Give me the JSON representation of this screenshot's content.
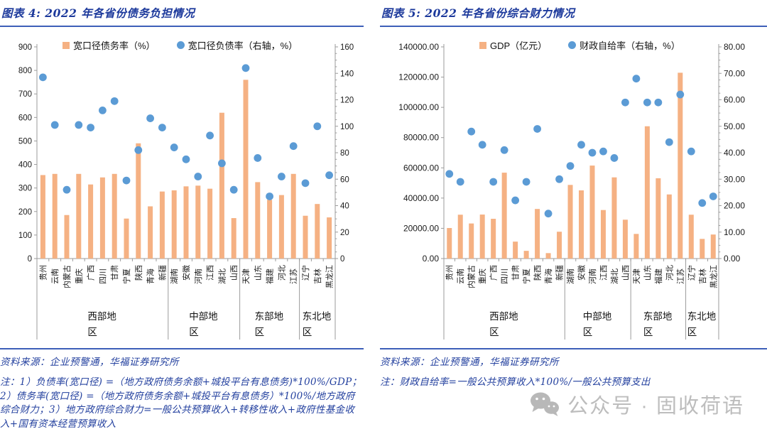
{
  "colors": {
    "accent_blue_rule": "#3d5fb8",
    "title_blue": "#1d3a9c",
    "footer_blue": "#24419f",
    "bar_orange": "#f5b183",
    "dot_blue": "#5b9bd5",
    "axis_gray": "#9b9b9b",
    "watermark_gray": "#bdbdbd"
  },
  "watermark": {
    "icon": "wechat-icon",
    "text": "公众号 · 固收荷语"
  },
  "charts": [
    {
      "title": "图表 4: 2022 年各省份债务负担情况",
      "legend": [
        {
          "swatch": "bar",
          "label": "宽口径债务率（%）"
        },
        {
          "swatch": "dot",
          "label": "宽口径负债率（右轴，%）"
        }
      ],
      "source": "资料来源：企业预警通，华福证券研究所",
      "note": "注：1）负债率(宽口径) =（地方政府债务余额+城投平台有息债务)*100%/GDP；2）债务率(宽口径) =（地方政府债务余额+城投平台有息债务）*100%/地方政府综合财力；3）地方政府综合财力=一般公共预算收入+转移性收入+政府性基金收入+国有资本经营预算收入",
      "chart_data": {
        "type": "combo-bar-scatter",
        "categories": [
          "贵州",
          "云南",
          "内蒙古",
          "重庆",
          "广西",
          "四川",
          "甘肃",
          "宁夏",
          "陕西",
          "青海",
          "新疆",
          "湖南",
          "安徽",
          "河南",
          "江西",
          "湖北",
          "山西",
          "天津",
          "山东",
          "福建",
          "河北",
          "江苏",
          "辽宁",
          "吉林",
          "黑龙江"
        ],
        "groups": [
          {
            "label": "西部地区",
            "count": 11
          },
          {
            "label": "中部地区",
            "count": 6
          },
          {
            "label": "东部地区",
            "count": 5
          },
          {
            "label": "东北地区",
            "count": 3
          }
        ],
        "series": [
          {
            "name": "宽口径债务率（%）",
            "type": "bar",
            "axis": "left",
            "color": "#f5b183",
            "values": [
              355,
              360,
              185,
              360,
              315,
              345,
              360,
              170,
              490,
              222,
              285,
              290,
              307,
              310,
              297,
              620,
              172,
              760,
              325,
              250,
              270,
              360,
              182,
              232,
              175
            ]
          },
          {
            "name": "宽口径负债率（右轴，%）",
            "type": "scatter",
            "axis": "right",
            "color": "#5b9bd5",
            "values": [
              137,
              101,
              52,
              101,
              99,
              112,
              119,
              59,
              82,
              106,
              99,
              84,
              75,
              62,
              93,
              72,
              52,
              144,
              76,
              47,
              62,
              85,
              57,
              100,
              63
            ]
          }
        ],
        "left_axis": {
          "min": 0,
          "max": 900,
          "step": 100,
          "ticks": [
            "0",
            "100",
            "200",
            "300",
            "400",
            "500",
            "600",
            "700",
            "800",
            "900"
          ]
        },
        "right_axis": {
          "min": 0,
          "max": 160,
          "step": 20,
          "ticks": [
            "0",
            "20",
            "40",
            "60",
            "80",
            "100",
            "120",
            "140",
            "160"
          ]
        },
        "grid": false,
        "legend_position": "top-inside"
      }
    },
    {
      "title": "图表 5: 2022 年各省份综合财力情况",
      "legend": [
        {
          "swatch": "bar",
          "label": "GDP（亿元）"
        },
        {
          "swatch": "dot",
          "label": "财政自给率（右轴，%）"
        }
      ],
      "source": "资料来源：企业预警通，华福证券研究所",
      "note": "注：财政自给率=一般公共预算收入*100%/一般公共预算支出",
      "chart_data": {
        "type": "combo-bar-scatter",
        "categories": [
          "贵州",
          "云南",
          "内蒙古",
          "重庆",
          "广西",
          "四川",
          "甘肃",
          "宁夏",
          "陕西",
          "青海",
          "新疆",
          "湖南",
          "安徽",
          "河南",
          "江西",
          "湖北",
          "山西",
          "天津",
          "山东",
          "福建",
          "河北",
          "江苏",
          "辽宁",
          "吉林",
          "黑龙江"
        ],
        "groups": [
          {
            "label": "西部地区",
            "count": 11
          },
          {
            "label": "中部地区",
            "count": 6
          },
          {
            "label": "东部地区",
            "count": 5
          },
          {
            "label": "东北地区",
            "count": 3
          }
        ],
        "series": [
          {
            "name": "GDP（亿元）",
            "type": "bar",
            "axis": "left",
            "color": "#f5b183",
            "values": [
              20200,
              29000,
              23200,
              29100,
              26300,
              56800,
              11200,
              5100,
              32800,
              3600,
              17750,
              48700,
              45100,
              61500,
              32100,
              53700,
              25700,
              16300,
              87500,
              53100,
              42400,
              122900,
              29000,
              13000,
              15900
            ]
          },
          {
            "name": "财政自给率（右轴，%）",
            "type": "scatter",
            "axis": "right",
            "color": "#5b9bd5",
            "values": [
              32,
              29,
              48,
              43,
              29,
              41,
              22,
              29,
              49,
              17,
              30,
              35,
              43,
              40,
              40.5,
              38,
              59,
              68,
              59,
              59,
              44,
              62,
              40.5,
              21,
              23.5
            ]
          }
        ],
        "left_axis": {
          "min": 0,
          "max": 140000,
          "step": 20000,
          "ticks": [
            "0.00",
            "20000.00",
            "40000.00",
            "60000.00",
            "80000.00",
            "100000.00",
            "120000.00",
            "140000.00"
          ]
        },
        "right_axis": {
          "min": 0,
          "max": 80,
          "step": 10,
          "ticks": [
            "0.00",
            "10.00",
            "20.00",
            "30.00",
            "40.00",
            "50.00",
            "60.00",
            "70.00",
            "80.00"
          ]
        },
        "grid": false,
        "legend_position": "top-inside"
      }
    }
  ]
}
